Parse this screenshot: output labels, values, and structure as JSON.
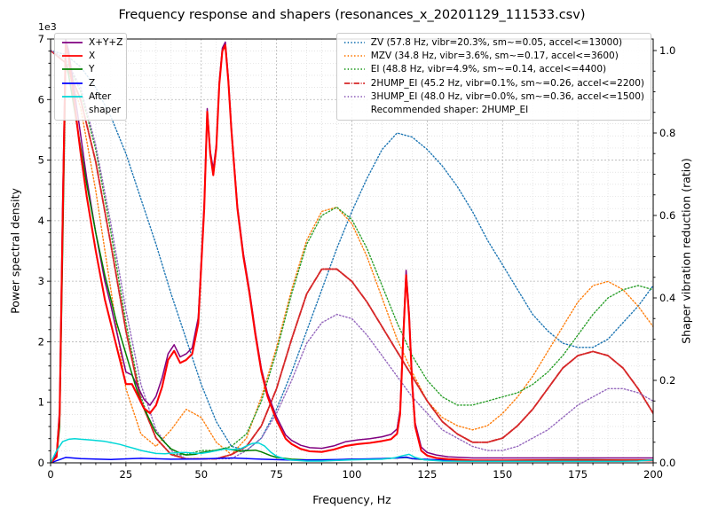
{
  "chart_data": {
    "type": "line",
    "title": "Frequency response and shapers (resonances_x_20201129_111533.csv)",
    "xlim": [
      0,
      200
    ],
    "ylim_left": [
      0,
      7000
    ],
    "ylim_right": [
      0,
      1.0
    ],
    "grid": "both",
    "axes": {
      "x": {
        "label": "Frequency, Hz",
        "min": 0,
        "max": 200,
        "ticks": [
          0,
          25,
          50,
          75,
          100,
          125,
          150,
          175,
          200
        ],
        "minor_step": 5
      },
      "y_left": {
        "label": "Power spectral density",
        "offset_text": "1e3",
        "min": 0,
        "max": 7000,
        "scale": 1000,
        "ticks": [
          0,
          1,
          2,
          3,
          4,
          5,
          6,
          7
        ],
        "minor_step": 200
      },
      "y_right": {
        "label": "Shaper vibration reduction (ratio)",
        "min": 0,
        "max": 1.0,
        "ticks": [
          "0.0",
          "0.2",
          "0.4",
          "0.6",
          "0.8",
          "1.0"
        ],
        "minor_step": 0.05
      }
    },
    "psd_series": [
      {
        "name": "X+Y+Z",
        "color": "#800080",
        "style": "solid",
        "x": [
          0,
          2,
          3,
          4,
          5,
          6,
          8,
          10,
          12,
          15,
          18,
          20,
          22,
          25,
          27,
          29,
          31,
          33,
          35,
          37,
          39,
          41,
          43,
          45,
          47,
          49,
          51,
          52,
          53,
          54,
          55,
          56,
          57,
          58,
          59,
          60,
          62,
          64,
          66,
          68,
          70,
          72,
          75,
          78,
          80,
          83,
          86,
          90,
          94,
          98,
          102,
          106,
          110,
          113,
          115,
          116,
          117,
          118,
          119,
          120,
          121,
          123,
          125,
          128,
          132,
          140,
          150,
          160,
          170,
          180,
          190,
          200
        ],
        "y": [
          0,
          150,
          900,
          4300,
          7000,
          6800,
          6100,
          5400,
          4700,
          3800,
          3000,
          2600,
          2150,
          1500,
          1450,
          1250,
          1050,
          950,
          1100,
          1400,
          1800,
          1950,
          1750,
          1800,
          1900,
          2400,
          4300,
          5850,
          5150,
          4850,
          5250,
          6300,
          6850,
          6950,
          6350,
          5550,
          4250,
          3450,
          2850,
          2150,
          1550,
          1150,
          760,
          460,
          370,
          290,
          250,
          240,
          280,
          350,
          380,
          400,
          430,
          470,
          560,
          880,
          2100,
          3180,
          2480,
          1380,
          660,
          260,
          170,
          130,
          100,
          80,
          80,
          80,
          80,
          80,
          80,
          80
        ]
      },
      {
        "name": "X",
        "color": "#ff0000",
        "style": "solid",
        "x": [
          0,
          2,
          3,
          4,
          5,
          6,
          8,
          10,
          12,
          15,
          18,
          20,
          22,
          25,
          27,
          29,
          31,
          33,
          35,
          37,
          39,
          41,
          43,
          45,
          47,
          49,
          51,
          52,
          53,
          54,
          55,
          56,
          57,
          58,
          59,
          60,
          62,
          64,
          66,
          68,
          70,
          72,
          75,
          78,
          80,
          83,
          86,
          90,
          94,
          98,
          102,
          106,
          110,
          113,
          115,
          116,
          117,
          118,
          119,
          120,
          121,
          123,
          125,
          128,
          132,
          140,
          150,
          160,
          170,
          180,
          190,
          200
        ],
        "y": [
          0,
          100,
          800,
          4000,
          6900,
          6700,
          5900,
          5100,
          4400,
          3500,
          2700,
          2300,
          1900,
          1300,
          1300,
          1100,
          900,
          820,
          950,
          1250,
          1700,
          1850,
          1650,
          1700,
          1800,
          2300,
          4200,
          5800,
          5100,
          4750,
          5200,
          6250,
          6800,
          6900,
          6300,
          5500,
          4200,
          3400,
          2800,
          2100,
          1500,
          1100,
          700,
          400,
          310,
          230,
          190,
          180,
          220,
          280,
          310,
          330,
          360,
          390,
          480,
          800,
          2000,
          3100,
          2400,
          1300,
          600,
          200,
          120,
          80,
          60,
          40,
          40,
          40,
          40,
          40,
          40,
          40
        ]
      },
      {
        "name": "Y",
        "color": "#008000",
        "style": "solid",
        "x": [
          0,
          2,
          3,
          4,
          5,
          6,
          8,
          10,
          12,
          15,
          18,
          20,
          22,
          25,
          28,
          30,
          33,
          35,
          38,
          40,
          43,
          45,
          48,
          50,
          53,
          55,
          58,
          60,
          63,
          65,
          68,
          70,
          73,
          75,
          80,
          85,
          90,
          95,
          100,
          105,
          110,
          115,
          118,
          120,
          125,
          130,
          140,
          150,
          160,
          170,
          180,
          190,
          200
        ],
        "y": [
          0,
          100,
          600,
          3500,
          6600,
          6400,
          5800,
          5200,
          4600,
          3800,
          3100,
          2700,
          2300,
          1800,
          1300,
          1000,
          700,
          500,
          330,
          230,
          160,
          130,
          140,
          170,
          190,
          210,
          240,
          220,
          190,
          200,
          210,
          180,
          120,
          90,
          60,
          50,
          50,
          50,
          60,
          60,
          70,
          80,
          90,
          70,
          50,
          45,
          40,
          40,
          45,
          50,
          50,
          45,
          45
        ]
      },
      {
        "name": "Z",
        "color": "#0000ff",
        "style": "solid",
        "x": [
          0,
          5,
          10,
          20,
          30,
          40,
          50,
          60,
          70,
          80,
          90,
          100,
          110,
          115,
          118,
          120,
          130,
          140,
          150,
          160,
          170,
          180,
          190,
          200
        ],
        "y": [
          0,
          90,
          70,
          55,
          75,
          60,
          65,
          80,
          60,
          45,
          50,
          60,
          70,
          80,
          95,
          70,
          45,
          40,
          40,
          40,
          40,
          40,
          40,
          40
        ]
      },
      {
        "name": "After shaper",
        "color": "#00d7d7",
        "style": "solid",
        "x": [
          0,
          2,
          4,
          6,
          8,
          10,
          13,
          15,
          18,
          20,
          23,
          25,
          28,
          30,
          33,
          35,
          38,
          40,
          43,
          45,
          48,
          50,
          53,
          55,
          58,
          60,
          63,
          65,
          67,
          69,
          71,
          73,
          75,
          78,
          80,
          85,
          90,
          95,
          100,
          105,
          110,
          114,
          117,
          119,
          121,
          124,
          127,
          130,
          140,
          150,
          160,
          170,
          180,
          190,
          195,
          200
        ],
        "y": [
          0,
          200,
          350,
          390,
          400,
          390,
          380,
          370,
          355,
          335,
          305,
          275,
          235,
          205,
          175,
          155,
          150,
          160,
          170,
          170,
          160,
          155,
          180,
          200,
          230,
          220,
          230,
          280,
          320,
          330,
          280,
          180,
          110,
          60,
          45,
          30,
          30,
          40,
          50,
          55,
          60,
          80,
          120,
          140,
          90,
          50,
          40,
          30,
          25,
          25,
          25,
          25,
          25,
          25,
          30,
          45
        ]
      }
    ],
    "shaper_x": [
      0,
      5,
      10,
      15,
      20,
      25,
      30,
      35,
      40,
      45,
      50,
      55,
      60,
      65,
      70,
      75,
      80,
      85,
      90,
      95,
      100,
      105,
      110,
      115,
      120,
      125,
      130,
      135,
      140,
      145,
      150,
      155,
      160,
      165,
      170,
      175,
      180,
      185,
      190,
      195,
      200
    ],
    "shaper_series": [
      {
        "name": "ZV",
        "label": "ZV (57.8 Hz, vibr=20.3%, sm~=0.05, accel<=13000)",
        "color": "#1f77b4",
        "style": "dotted",
        "r": [
          1,
          0.99,
          0.96,
          0.91,
          0.84,
          0.75,
          0.64,
          0.53,
          0.41,
          0.3,
          0.19,
          0.1,
          0.04,
          0.03,
          0.06,
          0.13,
          0.22,
          0.32,
          0.42,
          0.52,
          0.61,
          0.69,
          0.76,
          0.8,
          0.79,
          0.76,
          0.72,
          0.67,
          0.61,
          0.54,
          0.48,
          0.42,
          0.36,
          0.32,
          0.29,
          0.28,
          0.28,
          0.3,
          0.34,
          0.38,
          0.43
        ]
      },
      {
        "name": "MZV",
        "label": "MZV (34.8 Hz, vibr=3.6%, sm~=0.17, accel<=3600)",
        "color": "#ff7f0e",
        "style": "dotted",
        "r": [
          1,
          0.97,
          0.86,
          0.66,
          0.42,
          0.18,
          0.07,
          0.04,
          0.08,
          0.13,
          0.11,
          0.05,
          0.02,
          0.06,
          0.16,
          0.28,
          0.42,
          0.54,
          0.61,
          0.62,
          0.58,
          0.5,
          0.4,
          0.3,
          0.22,
          0.15,
          0.11,
          0.09,
          0.08,
          0.09,
          0.12,
          0.16,
          0.21,
          0.27,
          0.33,
          0.39,
          0.43,
          0.44,
          0.42,
          0.38,
          0.33
        ]
      },
      {
        "name": "EI",
        "label": "EI (48.8 Hz, vibr=4.9%, sm~=0.14, accel<=4400)",
        "color": "#2ca02c",
        "style": "dotted",
        "r": [
          1,
          0.98,
          0.9,
          0.76,
          0.56,
          0.34,
          0.16,
          0.06,
          0.02,
          0.02,
          0.03,
          0.03,
          0.04,
          0.07,
          0.15,
          0.27,
          0.41,
          0.53,
          0.6,
          0.62,
          0.59,
          0.52,
          0.43,
          0.34,
          0.26,
          0.2,
          0.16,
          0.14,
          0.14,
          0.15,
          0.16,
          0.17,
          0.19,
          0.22,
          0.26,
          0.31,
          0.36,
          0.4,
          0.42,
          0.43,
          0.42
        ]
      },
      {
        "name": "2HUMP_EI",
        "label": "2HUMP_EI (45.2 Hz, vibr=0.1%, sm~=0.26, accel<=2200)",
        "color": "#d62728",
        "style": "dashdot",
        "r": [
          1,
          0.97,
          0.88,
          0.73,
          0.53,
          0.32,
          0.15,
          0.06,
          0.02,
          0.01,
          0.01,
          0.01,
          0.02,
          0.04,
          0.09,
          0.18,
          0.3,
          0.41,
          0.47,
          0.47,
          0.44,
          0.39,
          0.33,
          0.27,
          0.21,
          0.15,
          0.1,
          0.07,
          0.05,
          0.05,
          0.06,
          0.09,
          0.13,
          0.18,
          0.23,
          0.26,
          0.27,
          0.26,
          0.23,
          0.18,
          0.12
        ]
      },
      {
        "name": "3HUMP_EI",
        "label": "3HUMP_EI (48.0 Hz, vibr=0.0%, sm~=0.36, accel<=1500)",
        "color": "#9467bd",
        "style": "dotted",
        "r": [
          1,
          0.98,
          0.91,
          0.77,
          0.58,
          0.37,
          0.19,
          0.08,
          0.03,
          0.01,
          0.01,
          0.01,
          0.01,
          0.03,
          0.06,
          0.12,
          0.2,
          0.29,
          0.34,
          0.36,
          0.35,
          0.31,
          0.26,
          0.21,
          0.16,
          0.12,
          0.08,
          0.06,
          0.04,
          0.03,
          0.03,
          0.04,
          0.06,
          0.08,
          0.11,
          0.14,
          0.16,
          0.18,
          0.18,
          0.17,
          0.15
        ]
      }
    ],
    "recommended_shaper": "2HUMP_EI",
    "legend_note": "Recommended shaper: 2HUMP_EI",
    "colors": {
      "grid_major": "#b5b5b5",
      "grid_minor": "#dcdcdc",
      "spine": "#000000",
      "background": "#ffffff"
    }
  }
}
